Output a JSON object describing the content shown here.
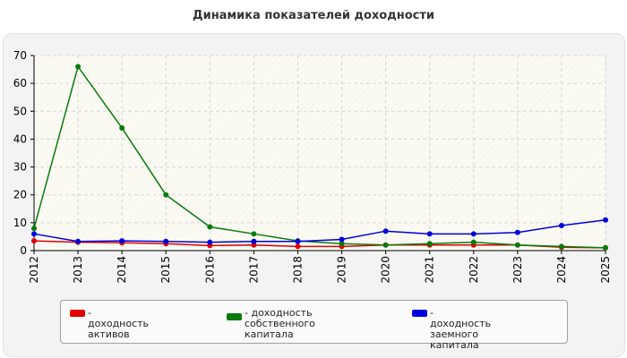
{
  "chart_data": {
    "type": "line",
    "title": "Динамика показателей доходности",
    "x": [
      "2012",
      "2013",
      "2014",
      "2015",
      "2016",
      "2017",
      "2018",
      "2019",
      "2020",
      "2021",
      "2022",
      "2023",
      "2024",
      "2025"
    ],
    "ylim": [
      0,
      70
    ],
    "yticks": [
      0,
      10,
      20,
      30,
      40,
      50,
      60,
      70
    ],
    "grid": true,
    "legend_placement": "bottom",
    "series": [
      {
        "name": "- доходность активов",
        "color": "#e00000",
        "values": [
          3.5,
          3.0,
          2.8,
          2.5,
          1.8,
          2.0,
          1.5,
          1.5,
          2.0,
          2.0,
          2.0,
          2.0,
          1.2,
          1.0
        ]
      },
      {
        "name": "- доходность собственного капитала",
        "color": "#0a7a0a",
        "values": [
          8.0,
          66.0,
          44.0,
          20.0,
          8.5,
          6.0,
          3.5,
          2.5,
          2.0,
          2.5,
          3.0,
          2.0,
          1.5,
          1.0
        ]
      },
      {
        "name": "- доходность заемного капитала",
        "color": "#0000dd",
        "values": [
          6.0,
          3.3,
          3.5,
          3.3,
          3.0,
          3.3,
          3.3,
          4.0,
          7.0,
          6.0,
          6.0,
          6.5,
          9.0,
          11.0
        ]
      }
    ]
  },
  "legend": {
    "items": [
      {
        "line1": "- доходность активов",
        "line2": ""
      },
      {
        "line1": "- доходность собственного",
        "line2": "капитала"
      },
      {
        "line1": "- доходность заемного",
        "line2": "капитала"
      }
    ]
  }
}
